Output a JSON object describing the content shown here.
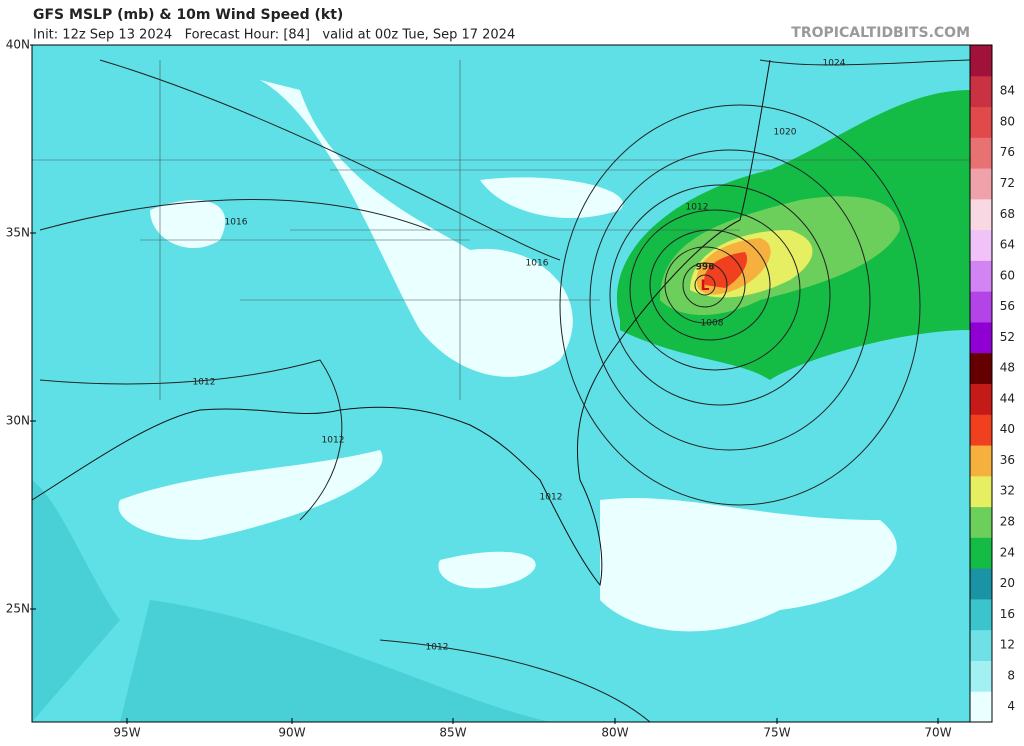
{
  "header": {
    "title": "GFS MSLP (mb) & 10m Wind Speed (kt)",
    "subtitle": "Init: 12z Sep 13 2024   Forecast Hour: [84]   valid at 00z Tue, Sep 17 2024",
    "source": "TROPICALTIDBITS.COM"
  },
  "map": {
    "lat_labels": [
      "40N",
      "35N",
      "30N",
      "25N"
    ],
    "lon_labels": [
      "95W",
      "90W",
      "85W",
      "80W",
      "75W",
      "70W"
    ],
    "isobar_labels": [
      "1024",
      "1020",
      "1012",
      "1016",
      "1016",
      "996",
      "1008",
      "1012",
      "1012",
      "1012",
      "1012"
    ],
    "low_label": "L"
  },
  "colorbar": {
    "labels": [
      4,
      8,
      12,
      16,
      20,
      24,
      28,
      32,
      36,
      40,
      44,
      48,
      52,
      56,
      60,
      64,
      68,
      72,
      76,
      80,
      84
    ],
    "colors": [
      "#eaffff",
      "#a2f0f2",
      "#6ee0e6",
      "#3cc4cc",
      "#1a93a4",
      "#14bb44",
      "#6ccf5c",
      "#e6ee62",
      "#f6b03e",
      "#f04020",
      "#c41a18",
      "#640000",
      "#9000d2",
      "#b244e8",
      "#d284f2",
      "#f0c2f8",
      "#f8d8e2",
      "#f0a2aa",
      "#e87272",
      "#e04a4a",
      "#c83242",
      "#a0123a"
    ]
  }
}
